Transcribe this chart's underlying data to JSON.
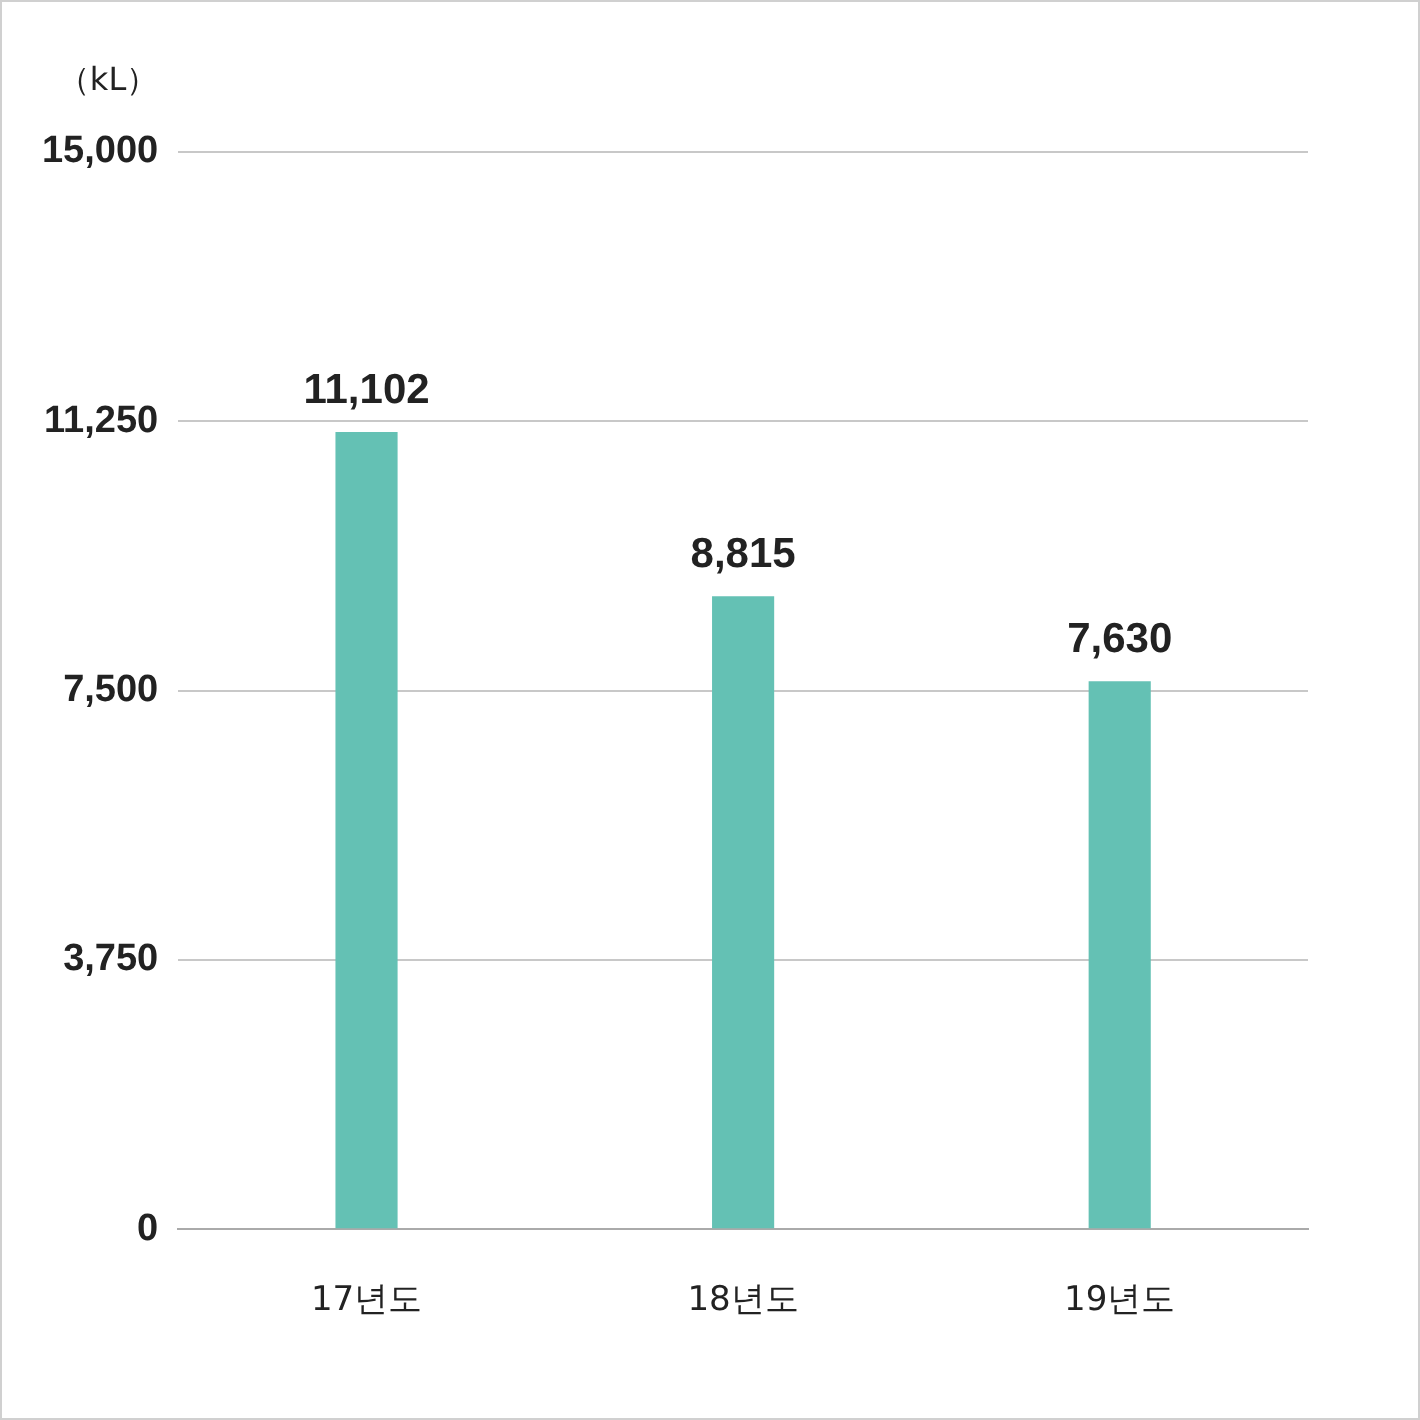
{
  "chart_data": {
    "type": "bar",
    "ylabel": "（kL）",
    "categories": [
      "17년도",
      "18년도",
      "19년도"
    ],
    "values": [
      11102,
      8815,
      7630
    ],
    "value_labels": [
      "11,102",
      "8,815",
      "7,630"
    ],
    "color": "#64c1b4",
    "ylim": [
      0,
      15000
    ],
    "yticks": [
      {
        "value": 0,
        "label": "0"
      },
      {
        "value": 3750,
        "label": "3,750"
      },
      {
        "value": 7500,
        "label": "7,500"
      },
      {
        "value": 11250,
        "label": "11,250"
      },
      {
        "value": 15000,
        "label": "15,000"
      }
    ],
    "grid": "y",
    "legend": false
  }
}
